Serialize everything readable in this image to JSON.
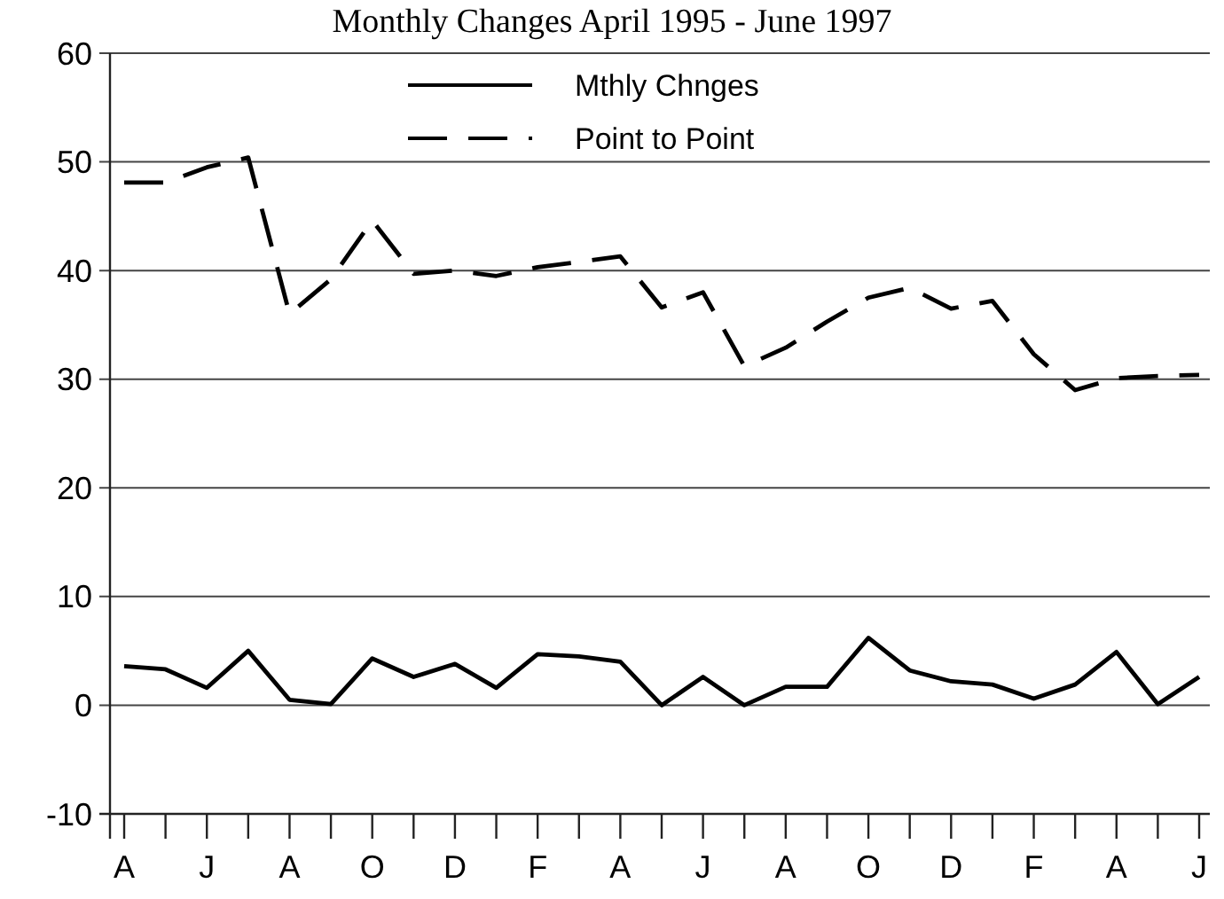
{
  "chart_data": {
    "type": "line",
    "title": "Monthly Changes April 1995 - June 1997",
    "categories": [
      "A",
      null,
      "J",
      null,
      "A",
      null,
      "O",
      null,
      "D",
      null,
      "F",
      null,
      "A",
      null,
      "J",
      null,
      "A",
      null,
      "O",
      null,
      "D",
      null,
      "F",
      null,
      "A",
      null,
      "J"
    ],
    "series": [
      {
        "name": "Mthly Chnges",
        "color": "#000000",
        "line_style": "solid",
        "values": [
          3.6,
          3.3,
          1.6,
          5.0,
          0.5,
          0.1,
          4.3,
          2.6,
          3.8,
          1.6,
          4.7,
          4.5,
          4.0,
          0,
          2.6,
          0,
          1.7,
          1.7,
          6.2,
          3.2,
          2.2,
          1.9,
          0.6,
          1.9,
          4.9,
          0.1,
          2.6
        ]
      },
      {
        "name": "Point to Point",
        "color": "#000000",
        "line_style": "dashed",
        "values": [
          48.1,
          48.1,
          49.5,
          50.4,
          36.0,
          39.2,
          44.6,
          39.7,
          40.0,
          39.5,
          40.3,
          40.8,
          41.3,
          36.6,
          38.0,
          31.2,
          32.9,
          35.3,
          37.5,
          38.4,
          36.5,
          37.2,
          32.3,
          29.0,
          30.1,
          30.3,
          30.4
        ]
      }
    ],
    "ylim": [
      -10,
      60
    ],
    "yticks": [
      -10,
      0,
      10,
      20,
      30,
      40,
      50,
      60
    ],
    "grid": "y",
    "legend": "top",
    "marker": "none"
  }
}
